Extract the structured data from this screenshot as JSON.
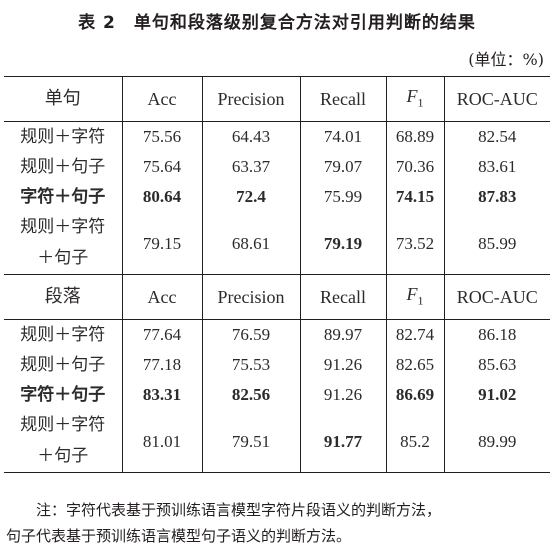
{
  "title": "表 2　单句和段落级别复合方法对引用判断的结果",
  "unit": "(单位：%)",
  "headers": {
    "metrics": [
      "Acc",
      "Precision",
      "Recall",
      "F",
      "ROC-AUC"
    ],
    "f1_subscript": "1"
  },
  "sections": [
    {
      "name": "单句",
      "rows": [
        {
          "label": [
            "规则＋字符"
          ],
          "values": [
            "75.56",
            "64.43",
            "74.01",
            "68.89",
            "82.54"
          ]
        },
        {
          "label": [
            "规则＋句子"
          ],
          "values": [
            "75.64",
            "63.37",
            "79.07",
            "70.36",
            "83.61"
          ]
        },
        {
          "label": [
            "字符＋句子"
          ],
          "values": [
            "80.64",
            "72.4",
            "75.99",
            "74.15",
            "87.83"
          ]
        },
        {
          "label": [
            "规则＋字符",
            "＋句子"
          ],
          "values": [
            "79.15",
            "68.61",
            "79.19",
            "73.52",
            "85.99"
          ]
        }
      ]
    },
    {
      "name": "段落",
      "rows": [
        {
          "label": [
            "规则＋字符"
          ],
          "values": [
            "77.64",
            "76.59",
            "89.97",
            "82.74",
            "86.18"
          ]
        },
        {
          "label": [
            "规则＋句子"
          ],
          "values": [
            "77.18",
            "75.53",
            "91.26",
            "82.65",
            "85.63"
          ]
        },
        {
          "label": [
            "字符＋句子"
          ],
          "values": [
            "83.31",
            "82.56",
            "91.26",
            "86.69",
            "91.02"
          ]
        },
        {
          "label": [
            "规则＋字符",
            "＋句子"
          ],
          "values": [
            "81.01",
            "79.51",
            "91.77",
            "85.2",
            "89.99"
          ]
        }
      ]
    }
  ],
  "note": {
    "line1": "注：字符代表基于预训练语言模型字符片段语义的判断方法，",
    "line2": "句子代表基于预训练语言模型句子语义的判断方法。"
  }
}
